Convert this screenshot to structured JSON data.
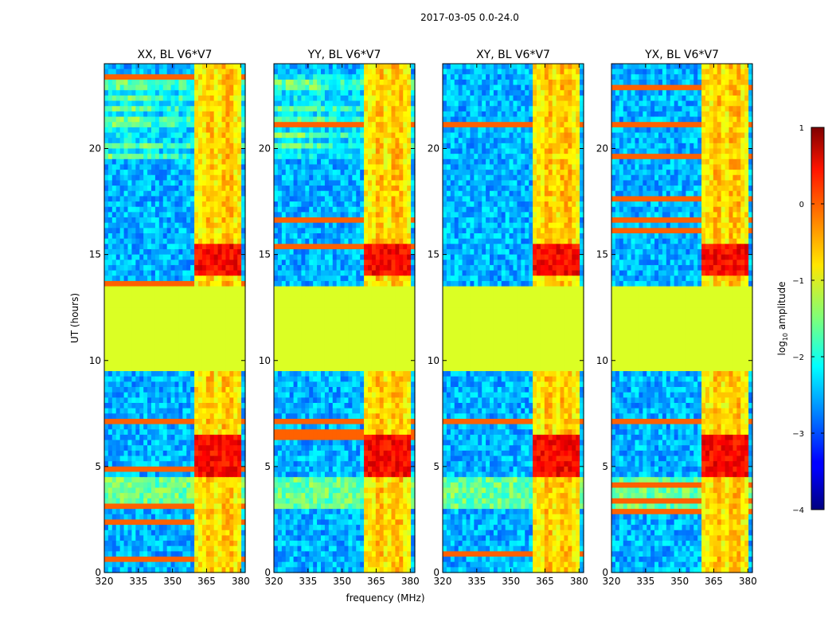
{
  "figure": {
    "suptitle": "2017-03-05 0.0-24.0"
  },
  "chart_data": [
    {
      "type": "heatmap",
      "title": "XX, BL V6*V7",
      "xlabel": "",
      "ylabel": "UT (hours)",
      "xlim": [
        320,
        382
      ],
      "ylim": [
        0,
        24
      ],
      "xticks": [
        320,
        335,
        350,
        365,
        380
      ],
      "yticks": [
        0,
        5,
        10,
        15,
        20
      ],
      "flagged_time_range_hours": [
        9.5,
        13.5
      ],
      "strong_band_mhz": [
        360,
        380
      ]
    },
    {
      "type": "heatmap",
      "title": "YY, BL V6*V7",
      "xlabel": "frequency (MHz)",
      "ylabel": "",
      "xlim": [
        320,
        382
      ],
      "ylim": [
        0,
        24
      ],
      "xticks": [
        320,
        335,
        350,
        365,
        380
      ],
      "yticks": [
        0,
        5,
        10,
        15,
        20
      ],
      "flagged_time_range_hours": [
        9.5,
        13.5
      ],
      "strong_band_mhz": [
        360,
        380
      ]
    },
    {
      "type": "heatmap",
      "title": "XY, BL V6*V7",
      "xlabel": "",
      "ylabel": "",
      "xlim": [
        320,
        382
      ],
      "ylim": [
        0,
        24
      ],
      "xticks": [
        320,
        335,
        350,
        365,
        380
      ],
      "yticks": [
        0,
        5,
        10,
        15,
        20
      ],
      "flagged_time_range_hours": [
        9.5,
        13.5
      ],
      "strong_band_mhz": [
        360,
        380
      ]
    },
    {
      "type": "heatmap",
      "title": "YX, BL V6*V7",
      "xlabel": "",
      "ylabel": "",
      "xlim": [
        320,
        382
      ],
      "ylim": [
        0,
        24
      ],
      "xticks": [
        320,
        335,
        350,
        365,
        380
      ],
      "yticks": [
        0,
        5,
        10,
        15,
        20
      ],
      "flagged_time_range_hours": [
        9.5,
        13.5
      ],
      "strong_band_mhz": [
        360,
        380
      ]
    }
  ],
  "colorbar": {
    "label": "log10 amplitude",
    "label_base": "log",
    "label_sub": "10",
    "label_rest": " amplitude",
    "range": [
      -4,
      1
    ],
    "ticks": [
      1,
      0,
      -1,
      -2,
      -3,
      -4
    ],
    "tick_labels": [
      "1",
      "0",
      "−1",
      "−2",
      "−3",
      "−4"
    ]
  }
}
